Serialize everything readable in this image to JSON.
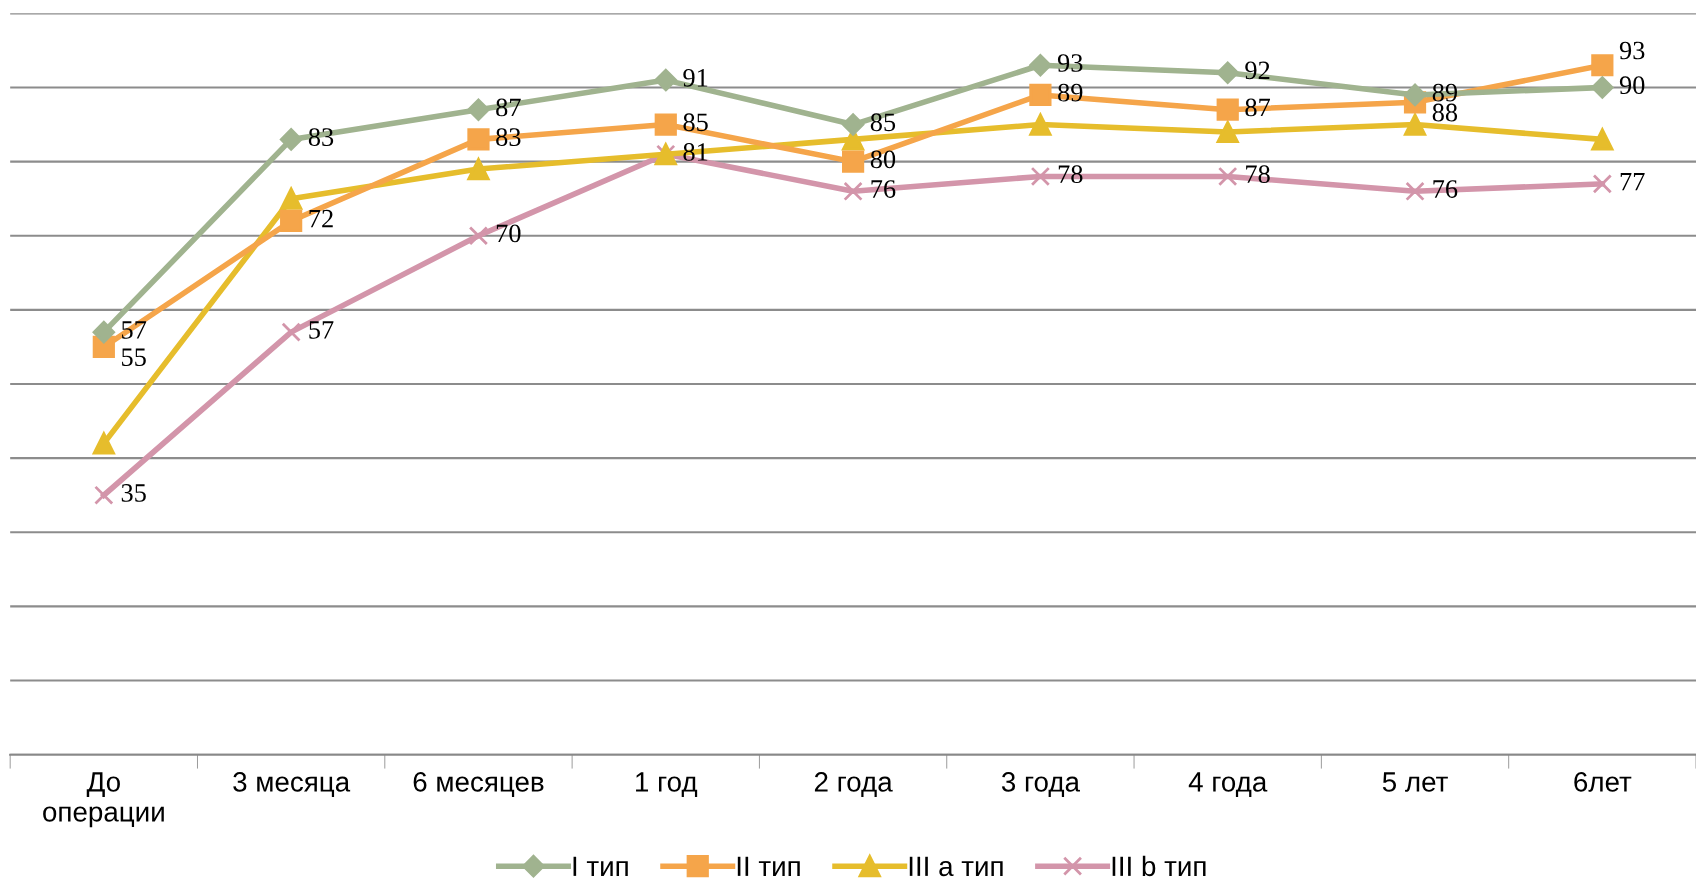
{
  "chart_data": {
    "type": "line",
    "categories": [
      "До\nоперации",
      "3 месяца",
      "6 месяцев",
      "1 год",
      "2 года",
      "3 года",
      "4 года",
      "5 лет",
      "6лет"
    ],
    "ylim": [
      0,
      100
    ],
    "yticks": [
      {
        "value": 0,
        "label": null
      },
      {
        "value": 10,
        "label": null
      },
      {
        "value": 20,
        "label": null
      },
      {
        "value": 30,
        "label": null
      },
      {
        "value": 40,
        "label": null
      },
      {
        "value": 50,
        "label": null
      },
      {
        "value": 60,
        "label": null
      },
      {
        "value": 70,
        "label": null
      },
      {
        "value": 80,
        "label": null
      },
      {
        "value": 90,
        "label": null
      },
      {
        "value": 100,
        "label": null
      }
    ],
    "grid": "y",
    "legend": "bottom",
    "tick_labels": "x",
    "series": [
      {
        "name": "I тип",
        "color": "#a0b38f",
        "marker": "diamond",
        "data_labels": true,
        "values": [
          57,
          83,
          87,
          91,
          85,
          93,
          92,
          89,
          90
        ]
      },
      {
        "name": "II тип",
        "color": "#f5a54a",
        "marker": "square",
        "data_labels": true,
        "values": [
          55,
          72,
          83,
          85,
          80,
          89,
          87,
          88,
          93
        ]
      },
      {
        "name": "III a тип",
        "color": "#e6bd2c",
        "marker": "triangle",
        "values": [
          42,
          75,
          79,
          81,
          83,
          85,
          84,
          85,
          83
        ]
      },
      {
        "name": "III b тип",
        "color": "#d395aa",
        "marker": "cross",
        "data_labels": true,
        "values": [
          35,
          57,
          70,
          81,
          76,
          78,
          78,
          76,
          77
        ]
      }
    ]
  }
}
